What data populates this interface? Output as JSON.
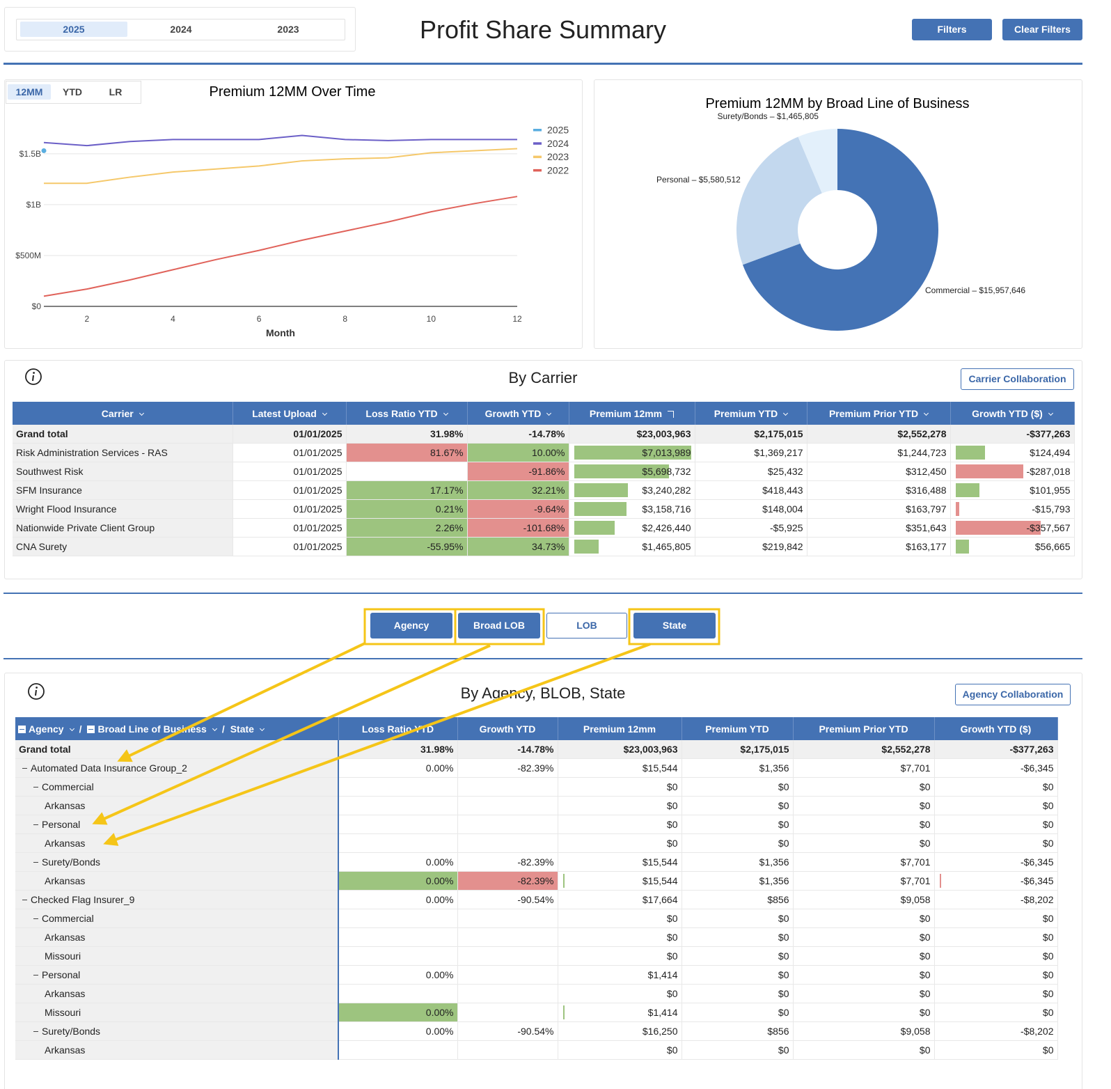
{
  "header": {
    "year_tabs": [
      "2025",
      "2024",
      "2023"
    ],
    "active_year": 0,
    "title": "Profit Share Summary",
    "buttons": [
      "Filters",
      "Clear Filters"
    ]
  },
  "line_chart_tabs": {
    "tabs": [
      "12MM",
      "YTD",
      "LR"
    ],
    "active": 0
  },
  "chart_data": [
    {
      "type": "line",
      "title": "Premium 12MM Over Time",
      "x_label": "Month",
      "x": [
        1,
        2,
        3,
        4,
        5,
        6,
        7,
        8,
        9,
        10,
        11,
        12
      ],
      "xlim": [
        1,
        12
      ],
      "xticks": [
        2,
        4,
        6,
        8,
        10,
        12
      ],
      "ylim": [
        0,
        1800000000
      ],
      "yticks": [
        {
          "value": 0,
          "label": "$0"
        },
        {
          "value": 500000000,
          "label": "$500M"
        },
        {
          "value": 1000000000,
          "label": "$1B"
        },
        {
          "value": 1500000000,
          "label": "$1.5B"
        }
      ],
      "grid": true,
      "legend": "right",
      "series": [
        {
          "name": "2025",
          "color": "#5aaee0",
          "values": [
            1530000000,
            null,
            null,
            null,
            null,
            null,
            null,
            null,
            null,
            null,
            null,
            null
          ]
        },
        {
          "name": "2024",
          "color": "#6b5fc7",
          "values": [
            1610000000,
            1580000000,
            1620000000,
            1640000000,
            1640000000,
            1640000000,
            1680000000,
            1640000000,
            1630000000,
            1640000000,
            1640000000,
            1640000000
          ]
        },
        {
          "name": "2023",
          "color": "#f5c86a",
          "values": [
            1210000000,
            1210000000,
            1270000000,
            1320000000,
            1350000000,
            1380000000,
            1430000000,
            1450000000,
            1460000000,
            1510000000,
            1530000000,
            1550000000
          ]
        },
        {
          "name": "2022",
          "color": "#e0625a",
          "values": [
            100000000,
            170000000,
            260000000,
            360000000,
            460000000,
            550000000,
            650000000,
            740000000,
            830000000,
            930000000,
            1010000000,
            1080000000
          ]
        }
      ]
    },
    {
      "type": "donut",
      "title": "Premium 12MM by Broad Line of Business",
      "values": [
        15957646,
        5580512,
        1465805
      ],
      "value_labels": [
        "Commercial – $15,957,646",
        "Personal – $5,580,512",
        "Surety/Bonds – $1,465,805"
      ],
      "colors": [
        "#4473b5",
        "#c3d8ee",
        "#e3f0fb"
      ]
    }
  ],
  "carrier_table": {
    "title": "By Carrier",
    "button": "Carrier Collaboration",
    "columns": [
      "Carrier",
      "Latest Upload",
      "Loss Ratio YTD",
      "Growth YTD",
      "Premium 12mm",
      "Premium YTD",
      "Premium Prior YTD",
      "Growth YTD ($)"
    ],
    "sorted_column": 4,
    "total": [
      "Grand total",
      "01/01/2025",
      "31.98%",
      "-14.78%",
      "$23,003,963",
      "$2,175,015",
      "$2,552,278",
      "-$377,263"
    ],
    "rows": [
      [
        "Risk Administration Services - RAS",
        "01/01/2025",
        "81.67%",
        "10.00%",
        "$7,013,989",
        "$1,369,217",
        "$1,244,723",
        "$124,494"
      ],
      [
        "Southwest Risk",
        "01/01/2025",
        null,
        "-91.86%",
        "$5,698,732",
        "$25,432",
        "$312,450",
        "-$287,018"
      ],
      [
        "SFM Insurance",
        "01/01/2025",
        "17.17%",
        "32.21%",
        "$3,240,282",
        "$418,443",
        "$316,488",
        "$101,955"
      ],
      [
        "Wright Flood Insurance",
        "01/01/2025",
        "0.21%",
        "-9.64%",
        "$3,158,716",
        "$148,004",
        "$163,797",
        "-$15,793"
      ],
      [
        "Nationwide Private Client Group",
        "01/01/2025",
        "2.26%",
        "-101.68%",
        "$2,426,440",
        "-$5,925",
        "$351,643",
        "-$357,567"
      ],
      [
        "CNA Surety",
        "01/01/2025",
        "-55.95%",
        "34.73%",
        "$1,465,805",
        "$219,842",
        "$163,177",
        "$56,665"
      ]
    ],
    "fills": {
      "2": [
        "#e3908e",
        null,
        "#9dc47f",
        "#9dc47f",
        "#9dc47f",
        "#9dc47f"
      ],
      "3": [
        "#9dc47f",
        "#e3908e",
        "#9dc47f",
        "#e3908e",
        "#e3908e",
        "#9dc47f"
      ]
    },
    "data_bar_columns": [
      4,
      7
    ],
    "bar_colors": {
      "positive": "#9dc47f",
      "negative": "#e3908e"
    }
  },
  "view_buttons": {
    "buttons": [
      "Agency",
      "Broad LOB",
      "LOB",
      "State"
    ],
    "active": [
      true,
      true,
      false,
      true
    ]
  },
  "agency_table": {
    "title": "By Agency, BLOB, State",
    "button": "Agency Collaboration",
    "row_header": [
      "Agency",
      "Broad Line of Business",
      "State"
    ],
    "row_header_separator": "/",
    "columns": [
      "Loss Ratio YTD",
      "Growth YTD",
      "Premium 12mm",
      "Premium YTD",
      "Premium Prior YTD",
      "Growth YTD ($)"
    ],
    "total": {
      "label": "Grand total",
      "cells": [
        "31.98%",
        "-14.78%",
        "$23,003,963",
        "$2,175,015",
        "$2,552,278",
        "-$377,263"
      ]
    },
    "rows": [
      {
        "level": 0,
        "label": "Automated Data Insurance Group_2",
        "cells": [
          "0.00%",
          "-82.39%",
          "$15,544",
          "$1,356",
          "$7,701",
          "-$6,345"
        ]
      },
      {
        "level": 1,
        "label": "Commercial",
        "cells": [
          null,
          null,
          "$0",
          "$0",
          "$0",
          "$0"
        ]
      },
      {
        "level": 2,
        "label": "Arkansas",
        "cells": [
          null,
          null,
          "$0",
          "$0",
          "$0",
          "$0"
        ]
      },
      {
        "level": 1,
        "label": "Personal",
        "cells": [
          null,
          null,
          "$0",
          "$0",
          "$0",
          "$0"
        ]
      },
      {
        "level": 2,
        "label": "Arkansas",
        "cells": [
          null,
          null,
          "$0",
          "$0",
          "$0",
          "$0"
        ]
      },
      {
        "level": 1,
        "label": "Surety/Bonds",
        "cells": [
          "0.00%",
          "-82.39%",
          "$15,544",
          "$1,356",
          "$7,701",
          "-$6,345"
        ]
      },
      {
        "level": 2,
        "label": "Arkansas",
        "cells": [
          "0.00%",
          "-82.39%",
          "$15,544",
          "$1,356",
          "$7,701",
          "-$6,345"
        ],
        "fills": [
          "#9dc47f",
          "#e3908e"
        ]
      },
      {
        "level": 0,
        "label": "Checked Flag Insurer_9",
        "cells": [
          "0.00%",
          "-90.54%",
          "$17,664",
          "$856",
          "$9,058",
          "-$8,202"
        ]
      },
      {
        "level": 1,
        "label": "Commercial",
        "cells": [
          null,
          null,
          "$0",
          "$0",
          "$0",
          "$0"
        ]
      },
      {
        "level": 2,
        "label": "Arkansas",
        "cells": [
          null,
          null,
          "$0",
          "$0",
          "$0",
          "$0"
        ]
      },
      {
        "level": 2,
        "label": "Missouri",
        "cells": [
          null,
          null,
          "$0",
          "$0",
          "$0",
          "$0"
        ]
      },
      {
        "level": 1,
        "label": "Personal",
        "cells": [
          "0.00%",
          null,
          "$1,414",
          "$0",
          "$0",
          "$0"
        ]
      },
      {
        "level": 2,
        "label": "Arkansas",
        "cells": [
          null,
          null,
          "$0",
          "$0",
          "$0",
          "$0"
        ]
      },
      {
        "level": 2,
        "label": "Missouri",
        "cells": [
          "0.00%",
          null,
          "$1,414",
          "$0",
          "$0",
          "$0"
        ],
        "fills": [
          "#9dc47f",
          null
        ]
      },
      {
        "level": 1,
        "label": "Surety/Bonds",
        "cells": [
          "0.00%",
          "-90.54%",
          "$16,250",
          "$856",
          "$9,058",
          "-$8,202"
        ]
      },
      {
        "level": 2,
        "label": "Arkansas",
        "cells": [
          null,
          null,
          "$0",
          "$0",
          "$0",
          "$0"
        ]
      }
    ],
    "data_bar_columns": [
      2,
      5
    ],
    "bar_colors": {
      "positive": "#9dc47f",
      "negative": "#e3908e"
    }
  }
}
